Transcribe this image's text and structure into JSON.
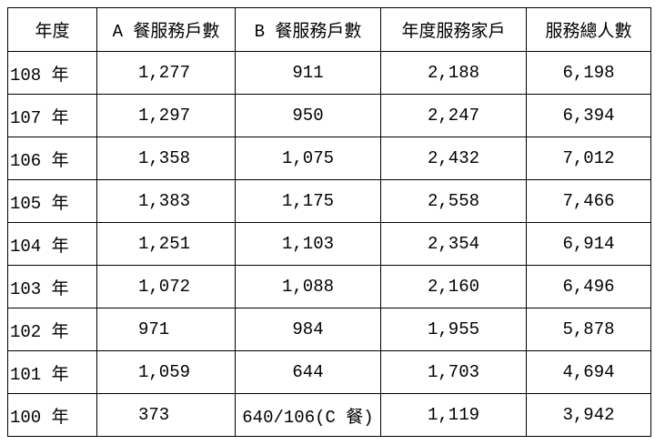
{
  "table": {
    "header": [
      "年度",
      "A 餐服務戶數",
      "B 餐服務戶數",
      "年度服務家戶",
      "服務總人數"
    ],
    "rows": [
      [
        "108 年",
        "1,277",
        "911",
        "2,188",
        "6,198"
      ],
      [
        "107 年",
        "1,297",
        "950",
        "2,247",
        "6,394"
      ],
      [
        "106 年",
        "1,358",
        "1,075",
        "2,432",
        "7,012"
      ],
      [
        "105 年",
        "1,383",
        "1,175",
        "2,558",
        "7,466"
      ],
      [
        "104 年",
        "1,251",
        "1,103",
        "2,354",
        "6,914"
      ],
      [
        "103 年",
        "1,072",
        "1,088",
        "2,160",
        "6,496"
      ],
      [
        "102 年",
        "971",
        "984",
        "1,955",
        "5,878"
      ],
      [
        "101 年",
        "1,059",
        "644",
        "1,703",
        "4,694"
      ],
      [
        "100 年",
        "373",
        "640/106(C 餐)",
        "1,119",
        "3,942"
      ]
    ]
  }
}
